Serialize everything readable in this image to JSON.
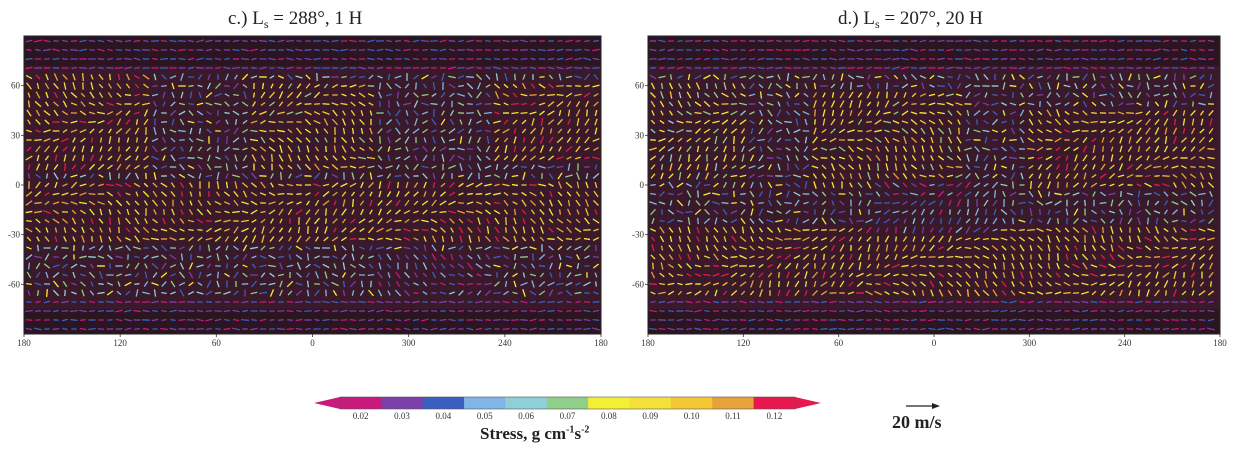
{
  "colors": {
    "bins": [
      "#c8197c",
      "#7a3fa8",
      "#3b5fc0",
      "#7fb6e6",
      "#8fd0d8",
      "#8fcf8a",
      "#f2ef35",
      "#f5e13a",
      "#f4c834",
      "#e8a23a",
      "#e8174f"
    ],
    "map_background": "#3a1a2a",
    "polar_background": "#2a1520"
  },
  "chart_data": [
    {
      "type": "vector-field",
      "title": "c.) L",
      "title_sub": "s",
      "title_rest": " = 288°, 1 H",
      "xticks": [
        "180",
        "120",
        "60",
        "0",
        "300",
        "240",
        "180"
      ],
      "yticks": [
        "60",
        "30",
        "0",
        "-30",
        "-60"
      ],
      "xlim": [
        180,
        -180
      ],
      "ylim": [
        -90,
        90
      ],
      "regions": [
        {
          "lon": [
            180,
            -180
          ],
          "lat": [
            -35,
            0
          ],
          "stress": 0.12
        },
        {
          "lon": [
            180,
            100
          ],
          "lat": [
            10,
            70
          ],
          "stress": 0.12
        },
        {
          "lon": [
            40,
            -40
          ],
          "lat": [
            10,
            60
          ],
          "stress": 0.11
        },
        {
          "lon": [
            -110,
            -180
          ],
          "lat": [
            15,
            65
          ],
          "stress": 0.12
        },
        {
          "lon": [
            -40,
            -110
          ],
          "lat": [
            -70,
            -40
          ],
          "stress": 0.06
        }
      ]
    },
    {
      "type": "vector-field",
      "title": "d.) L",
      "title_sub": "s",
      "title_rest": " = 207°, 20 H",
      "xticks": [
        "180",
        "120",
        "60",
        "0",
        "300",
        "240",
        "180"
      ],
      "yticks": [
        "60",
        "30",
        "0",
        "-30",
        "-60"
      ],
      "xlim": [
        180,
        -180
      ],
      "ylim": [
        -90,
        90
      ],
      "regions": [
        {
          "lon": [
            180,
            -180
          ],
          "lat": [
            -70,
            -25
          ],
          "stress": 0.12
        },
        {
          "lon": [
            80,
            -20
          ],
          "lat": [
            0,
            55
          ],
          "stress": 0.11
        },
        {
          "lon": [
            -60,
            -180
          ],
          "lat": [
            0,
            45
          ],
          "stress": 0.12
        },
        {
          "lon": [
            40,
            -40
          ],
          "lat": [
            -30,
            0
          ],
          "stress": 0.06
        },
        {
          "lon": [
            180,
            120
          ],
          "lat": [
            5,
            60
          ],
          "stress": 0.1
        }
      ]
    }
  ],
  "colorbar": {
    "labels": [
      "0.02",
      "0.03",
      "0.04",
      "0.05",
      "0.06",
      "0.07",
      "0.08",
      "0.09",
      "0.10",
      "0.11",
      "0.12"
    ],
    "title": "Stress, g cm",
    "title_sup1": "-1",
    "title_mid": "s",
    "title_sup2": "-2"
  },
  "scale_vector": {
    "label": "20 m/s",
    "speed": 20
  }
}
